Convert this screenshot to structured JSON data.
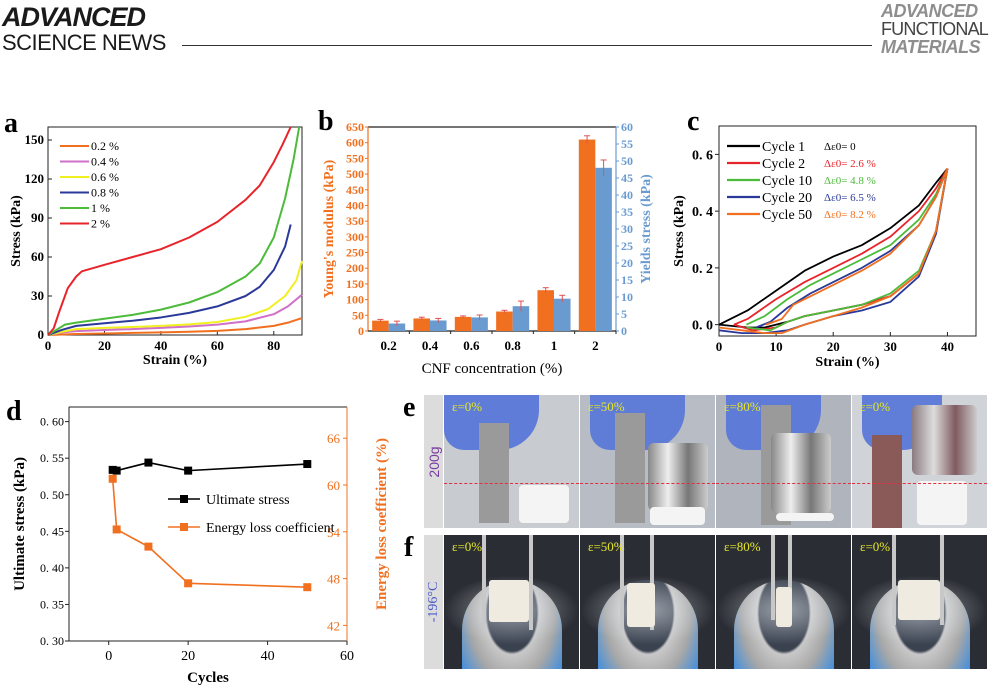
{
  "header": {
    "left_line1": "ADVANCED",
    "left_line2": "SCIENCE NEWS",
    "right_line1": "ADVANCED",
    "right_line2": "FUNCTIONAL",
    "right_line3": "MATERIALS"
  },
  "panel_labels": {
    "a": "a",
    "b": "b",
    "c": "c",
    "d": "d",
    "e": "e",
    "f": "f"
  },
  "colors": {
    "orange": "#f07020",
    "blue": "#6a9bd0",
    "black": "#000000",
    "red": "#e8242b",
    "green": "#4cbb3a",
    "navy": "#2b3a9a",
    "magenta": "#d070c8",
    "yellow": "#f0f020",
    "purple": "#7a3aa0",
    "label_blue": "#4a5ac8",
    "eps_yellow": "#e6e62a"
  },
  "chart_data": [
    {
      "id": "a",
      "type": "line",
      "title": "",
      "xlabel": "Strain (%)",
      "ylabel": "Stress (kPa)",
      "xlim": [
        0,
        90
      ],
      "ylim": [
        0,
        160
      ],
      "xticks": [
        0,
        20,
        40,
        60,
        80
      ],
      "yticks": [
        0,
        30,
        60,
        90,
        120,
        150
      ],
      "legend_position": "top-left",
      "series": [
        {
          "name": "0.2 %",
          "color": "#f07020",
          "points": [
            [
              0,
              0
            ],
            [
              10,
              0.8
            ],
            [
              20,
              1.2
            ],
            [
              30,
              1.6
            ],
            [
              40,
              2
            ],
            [
              50,
              2.5
            ],
            [
              60,
              3.2
            ],
            [
              70,
              4.5
            ],
            [
              80,
              7
            ],
            [
              85,
              9.5
            ],
            [
              90,
              13
            ]
          ]
        },
        {
          "name": "0.4 %",
          "color": "#d070c8",
          "points": [
            [
              0,
              0
            ],
            [
              5,
              2
            ],
            [
              10,
              3
            ],
            [
              20,
              3.8
            ],
            [
              30,
              4.5
            ],
            [
              40,
              5.5
            ],
            [
              50,
              6.5
            ],
            [
              60,
              8
            ],
            [
              70,
              10.5
            ],
            [
              80,
              16
            ],
            [
              85,
              22
            ],
            [
              90,
              31
            ]
          ]
        },
        {
          "name": "0.6 %",
          "color": "#f0f020",
          "points": [
            [
              0,
              0
            ],
            [
              5,
              2.5
            ],
            [
              10,
              4.5
            ],
            [
              20,
              5.5
            ],
            [
              30,
              6.2
            ],
            [
              40,
              7
            ],
            [
              50,
              8.2
            ],
            [
              60,
              10
            ],
            [
              70,
              14
            ],
            [
              78,
              20
            ],
            [
              84,
              30
            ],
            [
              88,
              42
            ],
            [
              90,
              57
            ]
          ]
        },
        {
          "name": "0.8 %",
          "color": "#2b3a9a",
          "points": [
            [
              0,
              0
            ],
            [
              5,
              4
            ],
            [
              10,
              7
            ],
            [
              20,
              9
            ],
            [
              30,
              11
            ],
            [
              40,
              13.5
            ],
            [
              50,
              17
            ],
            [
              60,
              22
            ],
            [
              70,
              30
            ],
            [
              75,
              37
            ],
            [
              80,
              50
            ],
            [
              84,
              68
            ],
            [
              86,
              85
            ]
          ]
        },
        {
          "name": "1 %",
          "color": "#4cbb3a",
          "points": [
            [
              0,
              0
            ],
            [
              3,
              4
            ],
            [
              6,
              8
            ],
            [
              10,
              9.5
            ],
            [
              20,
              12.5
            ],
            [
              30,
              15.5
            ],
            [
              40,
              19.5
            ],
            [
              50,
              25
            ],
            [
              60,
              33
            ],
            [
              70,
              45
            ],
            [
              75,
              55
            ],
            [
              80,
              75
            ],
            [
              84,
              105
            ],
            [
              87,
              135
            ],
            [
              89,
              160
            ]
          ]
        },
        {
          "name": "2 %",
          "color": "#e8242b",
          "points": [
            [
              0,
              0
            ],
            [
              2,
              5
            ],
            [
              4,
              18
            ],
            [
              7,
              36
            ],
            [
              10,
              45
            ],
            [
              12,
              49
            ],
            [
              20,
              54
            ],
            [
              30,
              60
            ],
            [
              40,
              66
            ],
            [
              50,
              75
            ],
            [
              60,
              87
            ],
            [
              70,
              104
            ],
            [
              75,
              115
            ],
            [
              80,
              133
            ],
            [
              83,
              146
            ],
            [
              86,
              160
            ]
          ]
        }
      ]
    },
    {
      "id": "b",
      "type": "bar",
      "title": "",
      "xlabel": "CNF concentration (%)",
      "ylabel_left": "Young's modulus (kPa)",
      "ylabel_right": "Yields stress (kPa)",
      "categories": [
        "0.2",
        "0.4",
        "0.6",
        "0.8",
        "1",
        "2"
      ],
      "ylim_left": [
        0,
        650
      ],
      "ylim_right": [
        0,
        60
      ],
      "yticks_left": [
        0,
        50,
        100,
        150,
        200,
        250,
        300,
        350,
        400,
        450,
        500,
        550,
        600,
        650
      ],
      "yticks_right": [
        0,
        5,
        10,
        15,
        20,
        25,
        30,
        35,
        40,
        45,
        50,
        55,
        60
      ],
      "series": [
        {
          "name": "Young's modulus",
          "axis": "left",
          "color": "#f07020",
          "values": [
            33,
            40,
            45,
            62,
            130,
            610
          ],
          "errors": [
            4,
            4,
            3,
            4,
            8,
            12
          ]
        },
        {
          "name": "Yields stress",
          "axis": "right",
          "color": "#6a9bd0",
          "values": [
            2.2,
            3.1,
            4.0,
            7.3,
            9.5,
            48
          ],
          "errors": [
            0.7,
            0.6,
            0.7,
            1.5,
            1.0,
            2.3
          ]
        }
      ]
    },
    {
      "id": "c",
      "type": "line",
      "title": "",
      "xlabel": "Strain (%)",
      "ylabel": "Stress (kPa)",
      "xlim": [
        0,
        45
      ],
      "ylim": [
        -0.04,
        0.7
      ],
      "xticks": [
        0,
        10,
        20,
        30,
        40
      ],
      "yticks": [
        0.0,
        0.2,
        0.4,
        0.6
      ],
      "ytick_labels": [
        "0. 0",
        "0. 2",
        "0. 4",
        "0. 6"
      ],
      "legend_position": "top-left",
      "series": [
        {
          "name": "Cycle 1",
          "annotation": "Δε0= 0",
          "color": "#000000",
          "loading": [
            [
              0,
              0
            ],
            [
              5,
              0.05
            ],
            [
              10,
              0.12
            ],
            [
              15,
              0.19
            ],
            [
              20,
              0.24
            ],
            [
              25,
              0.28
            ],
            [
              30,
              0.34
            ],
            [
              35,
              0.42
            ],
            [
              38,
              0.5
            ],
            [
              40,
              0.55
            ]
          ],
          "unloading": [
            [
              40,
              0.55
            ],
            [
              38,
              0.33
            ],
            [
              35,
              0.18
            ],
            [
              30,
              0.1
            ],
            [
              25,
              0.07
            ],
            [
              20,
              0.05
            ],
            [
              15,
              0.03
            ],
            [
              12,
              0.01
            ],
            [
              10,
              0
            ],
            [
              8,
              -0.01
            ],
            [
              5,
              -0.01
            ],
            [
              0,
              0
            ]
          ]
        },
        {
          "name": "Cycle 2",
          "annotation": "Δε0= 2.6 %",
          "color": "#e8242b",
          "loading": [
            [
              2.6,
              0
            ],
            [
              5,
              0.02
            ],
            [
              10,
              0.09
            ],
            [
              15,
              0.15
            ],
            [
              20,
              0.2
            ],
            [
              25,
              0.25
            ],
            [
              30,
              0.31
            ],
            [
              35,
              0.4
            ],
            [
              38,
              0.48
            ],
            [
              40,
              0.55
            ]
          ],
          "unloading": [
            [
              40,
              0.55
            ],
            [
              38,
              0.33
            ],
            [
              35,
              0.18
            ],
            [
              30,
              0.1
            ],
            [
              25,
              0.07
            ],
            [
              20,
              0.05
            ],
            [
              15,
              0.03
            ],
            [
              12,
              0.01
            ],
            [
              10,
              -0.01
            ],
            [
              6,
              -0.02
            ],
            [
              2.6,
              0
            ]
          ]
        },
        {
          "name": "Cycle 10",
          "annotation": "Δε0= 4.8 %",
          "color": "#4cbb3a",
          "loading": [
            [
              4.8,
              0
            ],
            [
              8,
              0.03
            ],
            [
              12,
              0.09
            ],
            [
              16,
              0.14
            ],
            [
              20,
              0.18
            ],
            [
              25,
              0.23
            ],
            [
              30,
              0.28
            ],
            [
              35,
              0.37
            ],
            [
              38,
              0.46
            ],
            [
              40,
              0.55
            ]
          ],
          "unloading": [
            [
              40,
              0.55
            ],
            [
              38,
              0.33
            ],
            [
              35,
              0.19
            ],
            [
              30,
              0.11
            ],
            [
              25,
              0.07
            ],
            [
              20,
              0.05
            ],
            [
              15,
              0.03
            ],
            [
              12,
              0.01
            ],
            [
              9,
              -0.02
            ],
            [
              4.8,
              -0.01
            ]
          ]
        },
        {
          "name": "Cycle 20",
          "annotation": "Δε0= 6.5 %",
          "color": "#2b3a9a",
          "loading": [
            [
              6.5,
              -0.01
            ],
            [
              9,
              0.01
            ],
            [
              12,
              0.06
            ],
            [
              16,
              0.11
            ],
            [
              20,
              0.15
            ],
            [
              25,
              0.2
            ],
            [
              30,
              0.26
            ],
            [
              35,
              0.35
            ],
            [
              38,
              0.45
            ],
            [
              40,
              0.55
            ]
          ],
          "unloading": [
            [
              40,
              0.55
            ],
            [
              38,
              0.32
            ],
            [
              35,
              0.17
            ],
            [
              30,
              0.08
            ],
            [
              25,
              0.05
            ],
            [
              20,
              0.03
            ],
            [
              15,
              0
            ],
            [
              12,
              -0.02
            ],
            [
              8,
              -0.03
            ],
            [
              4,
              -0.03
            ],
            [
              0,
              -0.02
            ]
          ]
        },
        {
          "name": "Cycle 50",
          "annotation": "Δε0= 8.2 %",
          "color": "#f07020",
          "loading": [
            [
              8.2,
              0
            ],
            [
              11,
              0.02
            ],
            [
              13,
              0.07
            ],
            [
              16,
              0.1
            ],
            [
              20,
              0.14
            ],
            [
              25,
              0.19
            ],
            [
              30,
              0.25
            ],
            [
              35,
              0.35
            ],
            [
              38,
              0.45
            ],
            [
              40,
              0.55
            ]
          ],
          "unloading": [
            [
              40,
              0.55
            ],
            [
              38,
              0.33
            ],
            [
              35,
              0.18
            ],
            [
              30,
              0.1
            ],
            [
              25,
              0.06
            ],
            [
              20,
              0.03
            ],
            [
              15,
              0
            ],
            [
              11,
              -0.03
            ],
            [
              8,
              -0.03
            ],
            [
              4,
              -0.02
            ],
            [
              0,
              -0.01
            ]
          ]
        }
      ]
    },
    {
      "id": "d",
      "type": "line",
      "title": "",
      "xlabel": "Cycles",
      "ylabel_left": "Ultimate stress (kPa)",
      "ylabel_right": "Energy loss coefficient (%)",
      "xlim": [
        -10,
        60
      ],
      "ylim_left": [
        0.3,
        0.62
      ],
      "ylim_right": [
        40,
        70
      ],
      "xticks": [
        0,
        20,
        40,
        60
      ],
      "yticks_left": [
        0.3,
        0.35,
        0.4,
        0.45,
        0.5,
        0.55,
        0.6
      ],
      "ytick_labels_left": [
        "0. 30",
        "0. 35",
        "0. 40",
        "0. 45",
        "0. 50",
        "0. 55",
        "0. 60"
      ],
      "yticks_right": [
        42,
        48,
        54,
        60,
        66
      ],
      "legend_position": "center-right",
      "series": [
        {
          "name": "Ultimate stress",
          "axis": "left",
          "color": "#000000",
          "x": [
            1,
            2,
            10,
            20,
            50
          ],
          "y": [
            0.534,
            0.533,
            0.544,
            0.533,
            0.542
          ]
        },
        {
          "name": "Energy loss coefficient",
          "axis": "right",
          "color": "#f07020",
          "x": [
            1,
            2,
            10,
            20,
            50
          ],
          "y": [
            60.8,
            54.3,
            52.1,
            47.4,
            46.9
          ]
        }
      ]
    }
  ],
  "photo_panels": {
    "e": {
      "row_label": "200g",
      "frames": [
        {
          "strain": "ε=0%"
        },
        {
          "strain": "ε=50%"
        },
        {
          "strain": "ε=80%"
        },
        {
          "strain": "ε=0%"
        }
      ]
    },
    "f": {
      "row_label": "-196°C",
      "frames": [
        {
          "strain": "ε=0%"
        },
        {
          "strain": "ε=50%"
        },
        {
          "strain": "ε=80%"
        },
        {
          "strain": "ε=0%"
        }
      ]
    }
  }
}
